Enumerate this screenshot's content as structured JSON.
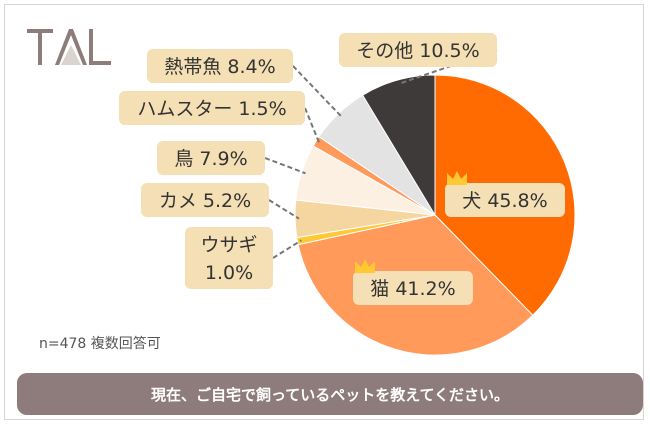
{
  "logo_text": "TAL",
  "note": "n=478 複数回答可",
  "footer": "現在、ご自宅で飼っているペットを教えてください。",
  "chart_data": {
    "type": "pie",
    "title": "",
    "slices": [
      {
        "label": "犬",
        "value": 45.8,
        "value_text": "45.8%",
        "color": "#ff6b00",
        "crown": true
      },
      {
        "label": "猫",
        "value": 41.2,
        "value_text": "41.2%",
        "color": "#ff9a5b",
        "crown": true
      },
      {
        "label": "ウサギ",
        "value": 1.0,
        "value_text": "1.0%",
        "color": "#ffc933"
      },
      {
        "label": "カメ",
        "value": 5.2,
        "value_text": "5.2%",
        "color": "#f6d6a0"
      },
      {
        "label": "鳥",
        "value": 7.9,
        "value_text": "7.9%",
        "color": "#fbf0e2"
      },
      {
        "label": "ハムスター",
        "value": 1.5,
        "value_text": "1.5%",
        "color": "#ff9a5b"
      },
      {
        "label": "熱帯魚",
        "value": 8.4,
        "value_text": "8.4%",
        "color": "#e3e3e3"
      },
      {
        "label": "その他",
        "value": 10.5,
        "value_text": "10.5%",
        "color": "#3d3a39"
      }
    ],
    "label_bg": "#f5dfb4",
    "slice_edge": "#ffffff",
    "crown_color": "#ffc933"
  }
}
